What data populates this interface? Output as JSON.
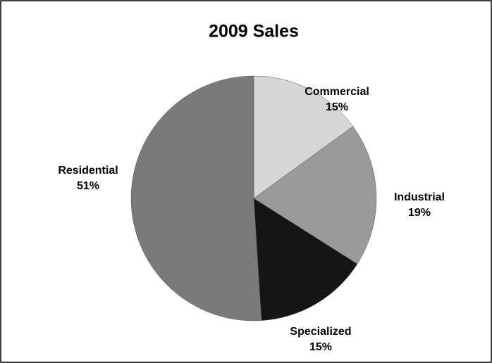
{
  "chart_data": {
    "type": "pie",
    "title": "2009 Sales",
    "categories": [
      "Commercial",
      "Industrial",
      "Specialized",
      "Residential"
    ],
    "values": [
      15,
      19,
      15,
      51
    ],
    "value_labels": [
      "15%",
      "19%",
      "15%",
      "51%"
    ],
    "colors": [
      "#d6d6d6",
      "#9a9a9a",
      "#151515",
      "#7a7a7a"
    ]
  }
}
